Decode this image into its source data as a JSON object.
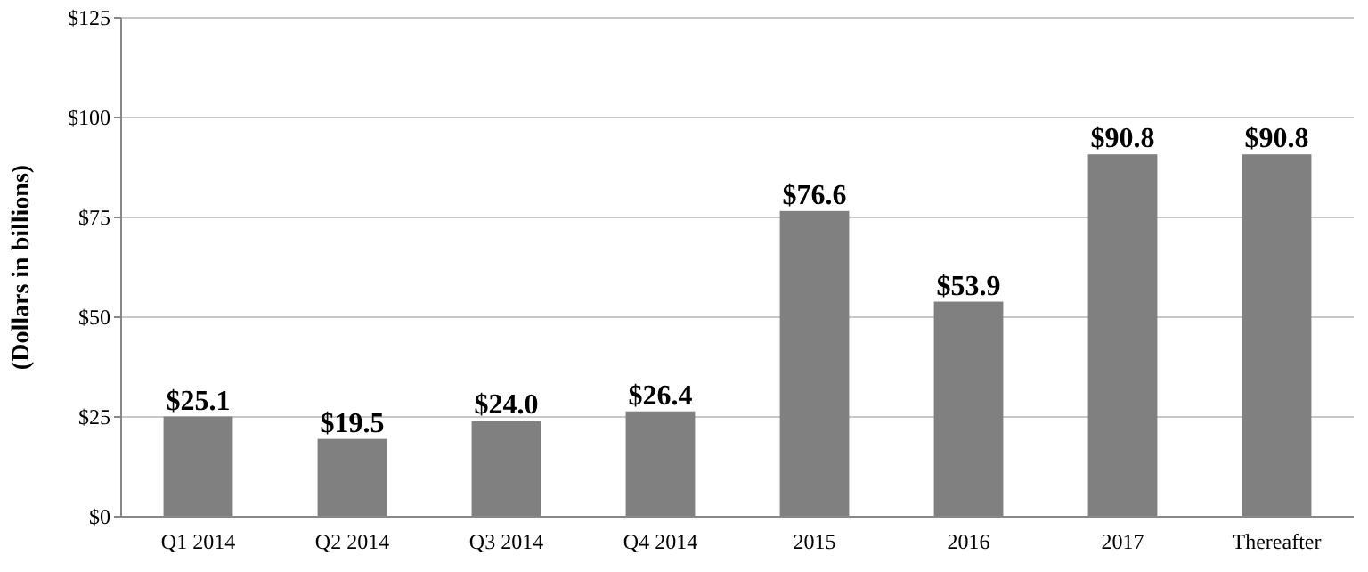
{
  "chart_data": {
    "type": "bar",
    "ylabel": "(Dollars in billions)",
    "categories": [
      "Q1 2014",
      "Q2 2014",
      "Q3 2014",
      "Q4 2014",
      "2015",
      "2016",
      "2017",
      "Thereafter"
    ],
    "values": [
      25.1,
      19.5,
      24.0,
      26.4,
      76.6,
      53.9,
      90.8,
      90.8
    ],
    "value_labels": [
      "$25.1",
      "$19.5",
      "$24.0",
      "$26.4",
      "$76.6",
      "$53.9",
      "$90.8",
      "$90.8"
    ],
    "color": "#808080",
    "ylim": [
      0,
      125
    ],
    "yticks": [
      {
        "value": 0,
        "label": "$0"
      },
      {
        "value": 25,
        "label": "$25"
      },
      {
        "value": 50,
        "label": "$50"
      },
      {
        "value": 75,
        "label": "$75"
      },
      {
        "value": 100,
        "label": "$100"
      },
      {
        "value": 125,
        "label": "$125"
      }
    ],
    "grid": "y"
  }
}
